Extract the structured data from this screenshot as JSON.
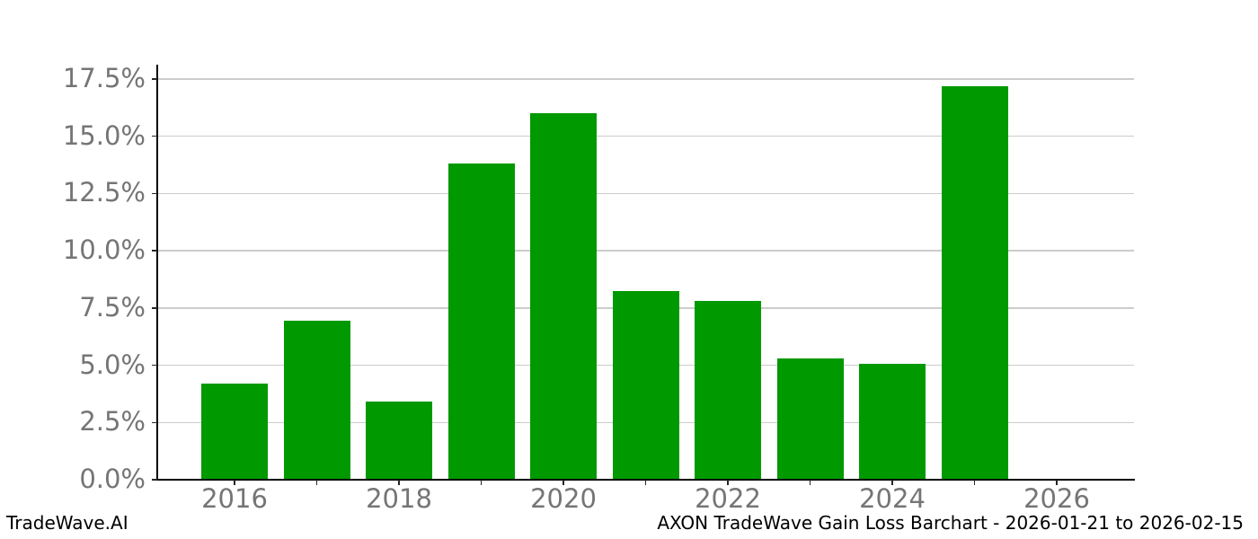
{
  "chart_data": {
    "type": "bar",
    "title": "AXON TradeWave Gain Loss Barchart - 2026-01-21 to 2026-02-15",
    "xlabel": "",
    "ylabel": "",
    "categories": [
      2016,
      2017,
      2018,
      2019,
      2020,
      2021,
      2022,
      2023,
      2024,
      2025
    ],
    "values": [
      4.2,
      6.95,
      3.4,
      13.8,
      16.0,
      8.25,
      7.8,
      5.3,
      5.05,
      17.2
    ],
    "value_unit": "%",
    "x_base": 2016,
    "ylim": [
      0,
      18.13
    ],
    "grid": "horizontal",
    "legend_position": "none",
    "yticks": [
      {
        "value": 0,
        "label": "0.0%"
      },
      {
        "value": 2.5,
        "label": "2.5%"
      },
      {
        "value": 5,
        "label": "5.0%"
      },
      {
        "value": 7.5,
        "label": "7.5%"
      },
      {
        "value": 10,
        "label": "10.0%"
      },
      {
        "value": 12.5,
        "label": "12.5%"
      },
      {
        "value": 15,
        "label": "15.0%"
      },
      {
        "value": 17.5,
        "label": "17.5%"
      }
    ],
    "xticks": [
      {
        "year": 2016,
        "label": "2016"
      },
      {
        "year": 2017,
        "label": ""
      },
      {
        "year": 2018,
        "label": "2018"
      },
      {
        "year": 2019,
        "label": ""
      },
      {
        "year": 2020,
        "label": "2020"
      },
      {
        "year": 2021,
        "label": ""
      },
      {
        "year": 2022,
        "label": "2022"
      },
      {
        "year": 2023,
        "label": ""
      },
      {
        "year": 2024,
        "label": "2024"
      },
      {
        "year": 2025,
        "label": ""
      },
      {
        "year": 2026,
        "label": "2026"
      }
    ]
  },
  "footer": {
    "brand": "TradeWave.AI",
    "caption": "AXON TradeWave Gain Loss Barchart - 2026-01-21 to 2026-02-15"
  },
  "colors": {
    "bar": "#009900",
    "grid": "#cccccc",
    "axis": "#000000",
    "tick_mark": "#262626",
    "tick_label": "#757575",
    "footer_text": "#000000",
    "background": "#ffffff"
  }
}
